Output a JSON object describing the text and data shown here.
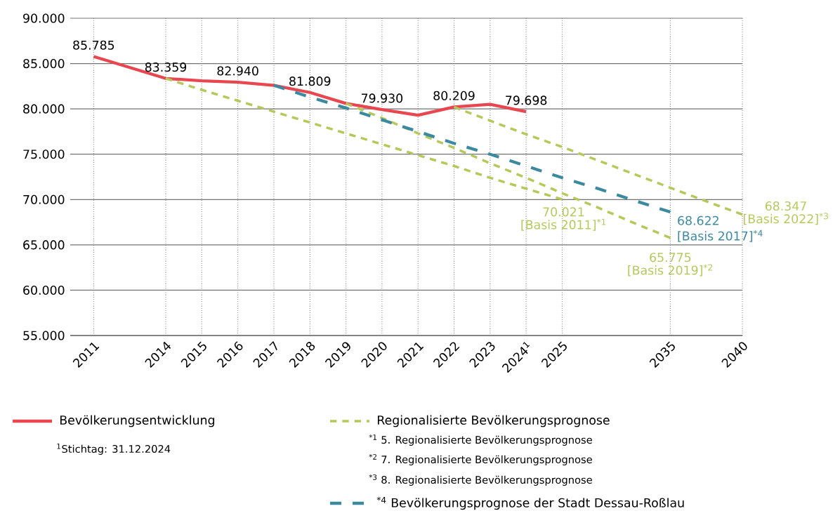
{
  "chart_data": {
    "type": "line",
    "categories": [
      "2011",
      null,
      "2014",
      "2015",
      "2016",
      "2017",
      "2018",
      "2019",
      "2020",
      "2021",
      "2022",
      "2023",
      "2024$^{1}$",
      "2025",
      null,
      null,
      "2035",
      null,
      "2040"
    ],
    "ylim": [
      55000,
      90000
    ],
    "yticks": [
      {
        "value": 55000,
        "label": "55.000"
      },
      {
        "value": 60000,
        "label": "60.000"
      },
      {
        "value": 65000,
        "label": "65.000"
      },
      {
        "value": 70000,
        "label": "70.000"
      },
      {
        "value": 75000,
        "label": "75.000"
      },
      {
        "value": 80000,
        "label": "80.000"
      },
      {
        "value": 85000,
        "label": "85.000"
      },
      {
        "value": 90000,
        "label": "90.000"
      }
    ],
    "grid": true,
    "legend": "bottom",
    "series": [
      {
        "name": "Bevölkerungsentwicklung",
        "color": "#e8474f",
        "line_style": "solid",
        "values": [
          85785,
          null,
          83359,
          83100,
          82940,
          82600,
          81809,
          80600,
          79930,
          79300,
          80209,
          80500,
          79698,
          null,
          null,
          null,
          null,
          null,
          null
        ],
        "value_labels": [
          "85.785",
          null,
          "83.359",
          null,
          "82.940",
          null,
          "81.809",
          null,
          "79.930",
          null,
          "80.209",
          null,
          "79.698",
          null,
          null,
          null,
          null,
          null,
          null
        ]
      },
      {
        "name": "Regionalisierte Bevölkerungsprognose",
        "color": "#b5c95a",
        "line_style": "dashed",
        "values": [
          null,
          null,
          83359,
          82100,
          80900,
          79700,
          78500,
          77300,
          76100,
          74900,
          73700,
          72400,
          71200,
          70021,
          null,
          null,
          null,
          null,
          null
        ],
        "value_labels": [
          null,
          null,
          null,
          null,
          null,
          null,
          null,
          null,
          null,
          null,
          null,
          null,
          null,
          "70.021",
          null,
          null,
          null,
          null,
          null
        ]
      },
      {
        "color": "#b5c95a",
        "line_style": "dashed",
        "values": [
          null,
          null,
          null,
          null,
          null,
          null,
          null,
          80600,
          79000,
          77300,
          75700,
          74000,
          72400,
          70700,
          69100,
          67400,
          65775,
          null,
          null
        ],
        "value_labels": [
          null,
          null,
          null,
          null,
          null,
          null,
          null,
          null,
          null,
          null,
          null,
          null,
          null,
          null,
          null,
          null,
          "65.775",
          null,
          null
        ]
      },
      {
        "color": "#b5c95a",
        "line_style": "dashed",
        "values": [
          null,
          null,
          null,
          null,
          null,
          null,
          null,
          null,
          null,
          null,
          80209,
          78700,
          77200,
          75800,
          74300,
          72800,
          71300,
          69800,
          68347
        ],
        "value_labels": [
          null,
          null,
          null,
          null,
          null,
          null,
          null,
          null,
          null,
          null,
          null,
          null,
          null,
          null,
          null,
          null,
          null,
          null,
          "68.347"
        ]
      },
      {
        "name": "$^{*4}$ Bevölkerungsprognose der Stadt Dessau-Roßlau",
        "color": "#3c8aa0",
        "line_style": "dashed",
        "values": [
          null,
          null,
          null,
          null,
          null,
          82600,
          81300,
          80100,
          78800,
          77500,
          76200,
          75000,
          73700,
          72400,
          71200,
          69900,
          68622,
          null,
          null
        ],
        "value_labels": [
          null,
          null,
          null,
          null,
          null,
          null,
          null,
          null,
          null,
          null,
          null,
          null,
          null,
          null,
          null,
          null,
          "68.622",
          null,
          null
        ]
      }
    ],
    "annotations": [
      "$^{1}$Stichtag: 31.12.2024",
      "$^{*1}$ 5. Regionalisierte Bevölkerungsprognose",
      "$^{*2}$ 7. Regionalisierte Bevölkerungsprognose",
      "$^{*3}$ 8. Regionalisierte Bevölkerungsprognose",
      {
        "text": "[Basis 2011]$^{*1}$",
        "x": "2025",
        "y": 70021
      },
      {
        "text": "[Basis 2019]$^{*2}$",
        "x": "2035",
        "y": 65775
      },
      {
        "text": "[Basis 2022]$^{*3}$",
        "x": "2040",
        "y": 68347
      },
      {
        "text": "[Basis 2017]$^{*4}$",
        "x": "2035",
        "y": 68622
      }
    ]
  }
}
